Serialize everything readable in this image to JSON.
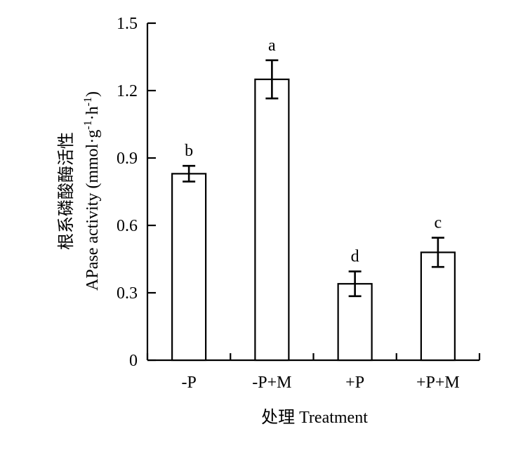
{
  "chart_data": {
    "type": "bar",
    "categories": [
      "-P",
      "-P+M",
      "+P",
      "+P+M"
    ],
    "values": [
      0.83,
      1.25,
      0.34,
      0.48
    ],
    "errors": [
      0.035,
      0.085,
      0.055,
      0.065
    ],
    "significance": [
      "b",
      "a",
      "d",
      "c"
    ],
    "ylim": [
      0,
      1.5
    ],
    "yticks": [
      0,
      0.3,
      0.6,
      0.9,
      1.2,
      1.5
    ],
    "ytick_labels": [
      "0",
      "0.3",
      "0.6",
      "0.9",
      "1.2",
      "1.5"
    ],
    "xlabel": "处理 Treatment",
    "ylabel_cn": "根系磷酸酶活性",
    "ylabel_en_main": "APase activity (mmol·g",
    "ylabel_en_sup1": "-1",
    "ylabel_en_mid": "·h",
    "ylabel_en_sup2": "-1",
    "ylabel_en_end": ")",
    "bar_fill": "#ffffff",
    "bar_stroke": "#000000",
    "grid": false,
    "legend": "none"
  }
}
